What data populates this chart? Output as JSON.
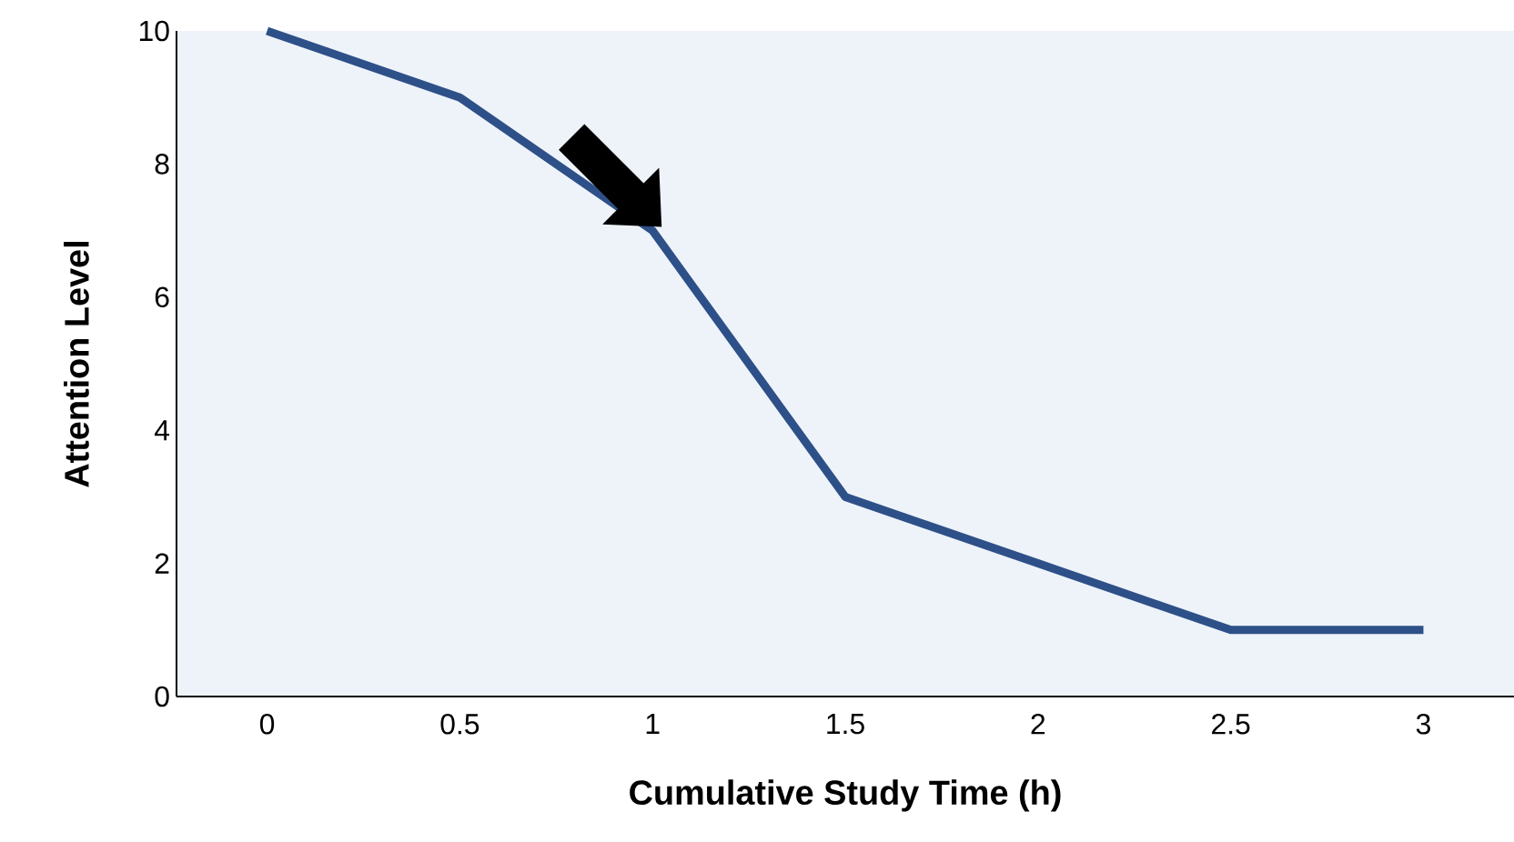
{
  "chart_data": {
    "type": "line",
    "xlabel": "Cumulative Study Time (h)",
    "ylabel": "Attention Level",
    "categories": [
      "0",
      "0.5",
      "1",
      "1.5",
      "2",
      "2.5",
      "3"
    ],
    "values": [
      10,
      9,
      7,
      3,
      2,
      1,
      1
    ],
    "color": "#2e5088",
    "ylim": [
      0,
      10
    ],
    "yticks": [
      0,
      2,
      4,
      6,
      8,
      10
    ],
    "line_style": "solid"
  }
}
